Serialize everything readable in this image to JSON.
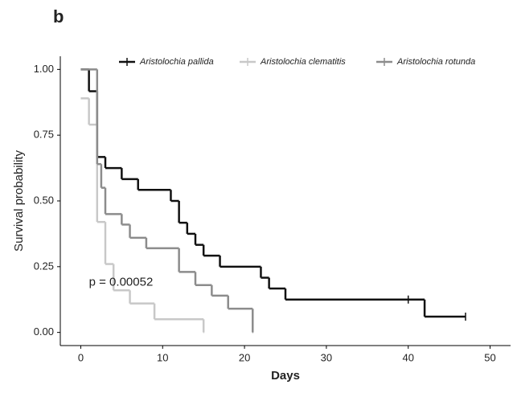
{
  "chart_data": {
    "type": "survival",
    "panel_label": "b",
    "xlabel": "Days",
    "ylabel": "Survival probability",
    "annotation": {
      "text": "p = 0.00052",
      "x": 1,
      "y": 0.19
    },
    "xlim": [
      -2.5,
      52.5
    ],
    "ylim": [
      -0.05,
      1.05
    ],
    "xticks": [
      0,
      10,
      20,
      30,
      40,
      50
    ],
    "yticks": [
      {
        "value": 0,
        "label": "0.00"
      },
      {
        "value": 0.25,
        "label": "0.25"
      },
      {
        "value": 0.5,
        "label": "0.50"
      },
      {
        "value": 0.75,
        "label": "0.75"
      },
      {
        "value": 1,
        "label": "1.00"
      }
    ],
    "grid": false,
    "legend_position": "top",
    "series": [
      {
        "name": "Aristolochia pallida",
        "color": "#111111",
        "x": [
          0,
          1,
          2,
          3,
          5,
          7,
          11,
          12,
          13,
          14,
          15,
          17,
          22,
          23,
          25,
          42,
          47
        ],
        "values": [
          1,
          0.917,
          0.667,
          0.625,
          0.583,
          0.542,
          0.5,
          0.417,
          0.375,
          0.333,
          0.292,
          0.25,
          0.208,
          0.167,
          0.125,
          0.06,
          0.06
        ],
        "censored_x": [
          40,
          47
        ],
        "censored_values": [
          0.125,
          0.06
        ]
      },
      {
        "name": "Aristolochia clematitis",
        "color": "#c8c8c8",
        "x": [
          0,
          1,
          2,
          3,
          4,
          6,
          9,
          15
        ],
        "values": [
          0.89,
          0.79,
          0.42,
          0.26,
          0.16,
          0.11,
          0.05,
          0
        ],
        "censored_x": [],
        "censored_values": []
      },
      {
        "name": "Aristolochia rotunda",
        "color": "#8c8c8c",
        "x": [
          0,
          2,
          2.5,
          3,
          5,
          6,
          8,
          12,
          14,
          16,
          18,
          21
        ],
        "values": [
          1,
          0.64,
          0.55,
          0.45,
          0.41,
          0.36,
          0.32,
          0.23,
          0.18,
          0.14,
          0.09,
          0
        ],
        "censored_x": [],
        "censored_values": []
      }
    ]
  }
}
